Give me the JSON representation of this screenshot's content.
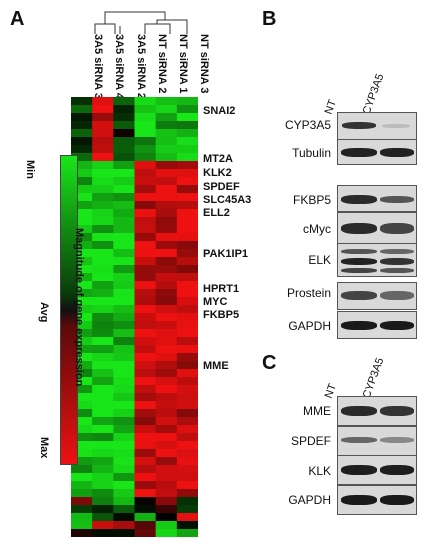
{
  "panelA": {
    "letter": "A",
    "columns": [
      "3A5 siRNA 3",
      "3A5 siRNA 4",
      "3A5 siRNA 2",
      "NT siRNA 2",
      "NT siRNA 1",
      "NT siRNA 3"
    ],
    "genes": [
      "SNAI2",
      "MT2A",
      "KLK2",
      "SPDEF",
      "SLC45A3",
      "ELL2",
      "PAK1IP1",
      "HPRT1",
      "MYC",
      "FKBP5",
      "MME"
    ],
    "scale": {
      "min": "Min",
      "avg": "Avg",
      "max": "Max",
      "title": "Magnitude of gene expression"
    },
    "colors": {
      "high": "#19e619",
      "low": "#ee1111",
      "mid": "#111111"
    }
  },
  "panelB": {
    "letter": "B",
    "lanes": [
      "NT",
      "CYP3A5"
    ],
    "blots": [
      "CYP3A5",
      "Tubulin",
      "FKBP5",
      "cMyc",
      "ELK",
      "Prostein",
      "GAPDH"
    ]
  },
  "panelC": {
    "letter": "C",
    "lanes": [
      "NT",
      "CYP3A5"
    ],
    "blots": [
      "MME",
      "SPDEF",
      "KLK",
      "GAPDH"
    ]
  }
}
